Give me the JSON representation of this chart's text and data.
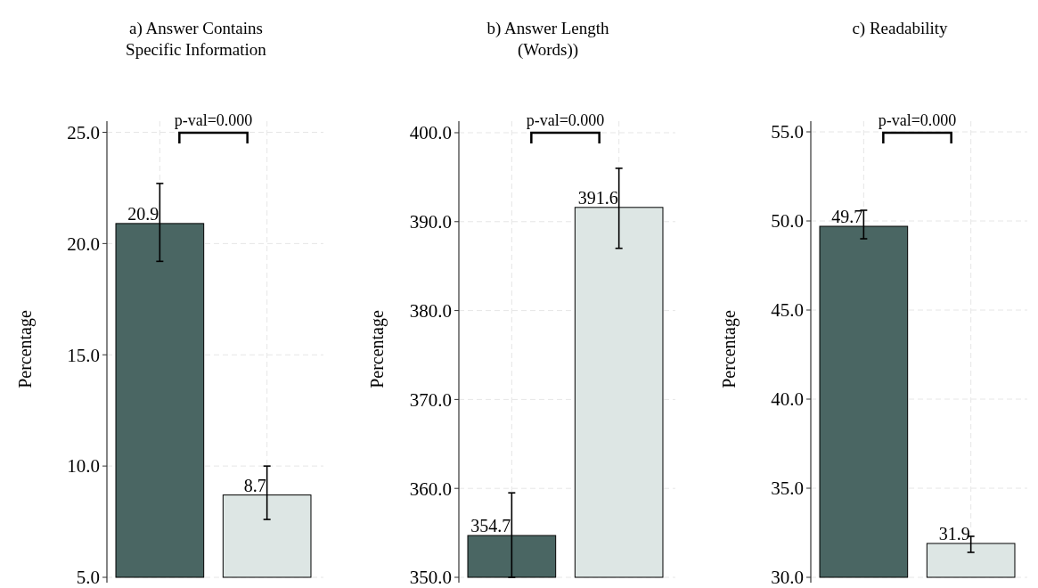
{
  "chart_data": [
    {
      "type": "bar",
      "title": "a) Answer Contains\nSpecific Information",
      "ylabel": "Percentage",
      "categories": [
        null,
        null
      ],
      "values": [
        20.9,
        8.7
      ],
      "colors": [
        "#4a6663",
        "#dde6e4"
      ],
      "errors": [
        [
          19.2,
          22.7
        ],
        [
          7.6,
          10.0
        ]
      ],
      "data_labels": true,
      "ylim": [
        5,
        25.5
      ],
      "yticks": [
        {
          "value": 5,
          "label": "5.0"
        },
        {
          "value": 10,
          "label": "10.0"
        },
        {
          "value": 15,
          "label": "15.0"
        },
        {
          "value": 20,
          "label": "20.0"
        },
        {
          "value": 25,
          "label": "25.0"
        }
      ],
      "grid": true,
      "annotations": [
        "p-val=0.000"
      ]
    },
    {
      "type": "bar",
      "title": "b) Answer Length\n(Words))",
      "ylabel": "Percentage",
      "categories": [
        null,
        null
      ],
      "values": [
        354.7,
        391.6
      ],
      "colors": [
        "#4a6663",
        "#dde6e4"
      ],
      "errors": [
        [
          350.0,
          359.5
        ],
        [
          387.0,
          396.0
        ]
      ],
      "data_labels": true,
      "ylim": [
        350,
        401.3
      ],
      "yticks": [
        {
          "value": 350,
          "label": "350.0"
        },
        {
          "value": 360,
          "label": "360.0"
        },
        {
          "value": 370,
          "label": "370.0"
        },
        {
          "value": 380,
          "label": "380.0"
        },
        {
          "value": 390,
          "label": "390.0"
        },
        {
          "value": 400,
          "label": "400.0"
        }
      ],
      "grid": true,
      "annotations": [
        "p-val=0.000"
      ]
    },
    {
      "type": "bar",
      "title": "c) Readability",
      "ylabel": "Percentage",
      "categories": [
        null,
        null
      ],
      "values": [
        49.7,
        31.9
      ],
      "colors": [
        "#4a6663",
        "#dde6e4"
      ],
      "errors": [
        [
          49.0,
          50.6
        ],
        [
          31.4,
          32.3
        ]
      ],
      "data_labels": true,
      "ylim": [
        30,
        55.6
      ],
      "yticks": [
        {
          "value": 30,
          "label": "30.0"
        },
        {
          "value": 35,
          "label": "35.0"
        },
        {
          "value": 40,
          "label": "40.0"
        },
        {
          "value": 45,
          "label": "45.0"
        },
        {
          "value": 50,
          "label": "50.0"
        },
        {
          "value": 55,
          "label": "55.0"
        }
      ],
      "grid": true,
      "annotations": [
        "p-val=0.000"
      ]
    }
  ]
}
